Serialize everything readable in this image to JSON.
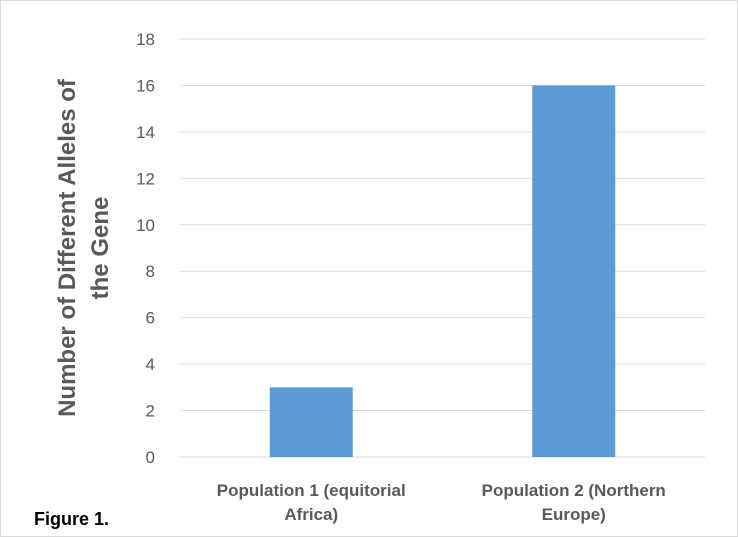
{
  "figure_caption": "Figure 1.",
  "chart_data": {
    "type": "bar",
    "categories": [
      [
        "Population 1 (equitorial",
        "Africa)"
      ],
      [
        "Population 2 (Northern",
        "Europe)"
      ]
    ],
    "values": [
      3,
      16
    ],
    "ylabel": [
      "Number of Different Alleles of",
      "the Gene"
    ],
    "ylim": [
      0,
      18
    ],
    "yticks": [
      0,
      2,
      4,
      6,
      8,
      10,
      12,
      14,
      16,
      18
    ],
    "grid": true,
    "bar_color": "#5b9bd5",
    "grid_color": "#d9d9d9",
    "text_color": "#595959"
  }
}
